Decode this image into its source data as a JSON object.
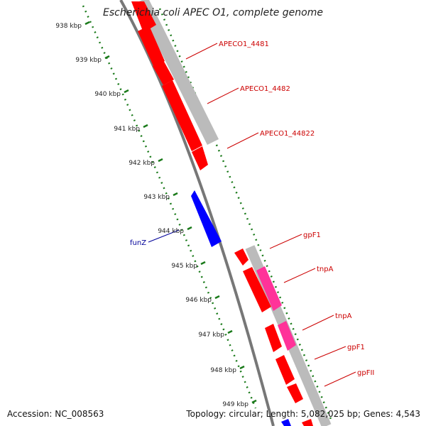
{
  "title": "Escherichia coli APEC O1, complete genome",
  "footer": {
    "accession": "Accession: NC_008563",
    "summary": "Topology: circular; Length: 5,082,025 bp; Genes: 4,543"
  },
  "ticks": [
    "938 kbp",
    "939 kbp",
    "940 kbp",
    "941 kbp",
    "942 kbp",
    "943 kbp",
    "944 kbp",
    "945 kbp",
    "946 kbp",
    "947 kbp",
    "948 kbp",
    "949 kbp"
  ],
  "gene_labels": {
    "g4481": "APECO1_4481",
    "g4482": "APECO1_4482",
    "g44822": "APECO1_44822",
    "gpf1a": "gpF1",
    "tnpa1": "tnpA",
    "tnpa2": "tnpA",
    "gpf1b": "gpF1",
    "gpfii": "gpFII",
    "funz": "funZ"
  },
  "colors": {
    "forward_cds": "#ff0000",
    "reverse_cds": "#0000ff",
    "gene": "#bbbbbb",
    "mobile": "#ff3399",
    "forward_label": "#cc0000",
    "reverse_label": "#000099",
    "tick": "#1a7a1a",
    "backbone": "#777777"
  }
}
